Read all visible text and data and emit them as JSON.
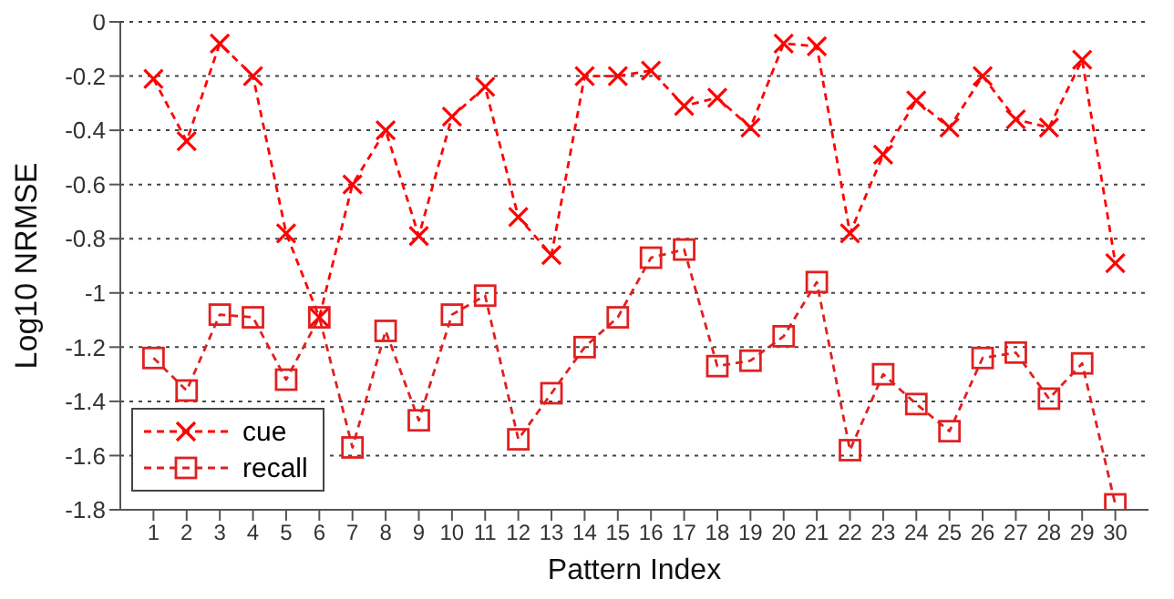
{
  "chart_data": {
    "type": "line",
    "xlabel": "Pattern Index",
    "ylabel": "Log10 NRMSE",
    "x": [
      1,
      2,
      3,
      4,
      5,
      6,
      7,
      8,
      9,
      10,
      11,
      12,
      13,
      14,
      15,
      16,
      17,
      18,
      19,
      20,
      21,
      22,
      23,
      24,
      25,
      26,
      27,
      28,
      29,
      30
    ],
    "xlim": [
      0,
      31
    ],
    "xticks": [
      1,
      2,
      3,
      4,
      5,
      6,
      7,
      8,
      9,
      10,
      11,
      12,
      13,
      14,
      15,
      16,
      17,
      18,
      19,
      20,
      21,
      22,
      23,
      24,
      25,
      26,
      27,
      28,
      29,
      30
    ],
    "ylim": [
      -1.8,
      0
    ],
    "yticks": [
      -1.8,
      -1.6,
      -1.4,
      -1.2,
      -1,
      -0.8,
      -0.6,
      -0.4,
      -0.2,
      0
    ],
    "grid": "y",
    "legend": "bottom left",
    "line_style": "dashed",
    "series": [
      {
        "name": "cue",
        "color": "#ff0000",
        "marker": "cross",
        "values": [
          -0.21,
          -0.44,
          -0.08,
          -0.2,
          -0.78,
          -1.09,
          -0.6,
          -0.4,
          -0.79,
          -0.35,
          -0.24,
          -0.72,
          -0.86,
          -0.2,
          -0.2,
          -0.18,
          -0.31,
          -0.28,
          -0.39,
          -0.08,
          -0.09,
          -0.78,
          -0.49,
          -0.29,
          -0.39,
          -0.2,
          -0.36,
          -0.39,
          -0.14,
          -0.89
        ]
      },
      {
        "name": "recall",
        "color": "#e02020",
        "marker": "square",
        "values": [
          -1.24,
          -1.36,
          -1.08,
          -1.09,
          -1.32,
          -1.09,
          -1.57,
          -1.14,
          -1.47,
          -1.08,
          -1.01,
          -1.54,
          -1.37,
          -1.2,
          -1.09,
          -0.87,
          -0.84,
          -1.27,
          -1.25,
          -1.16,
          -0.96,
          -1.58,
          -1.3,
          -1.41,
          -1.51,
          -1.24,
          -1.22,
          -1.39,
          -1.26,
          -1.78
        ]
      }
    ]
  }
}
